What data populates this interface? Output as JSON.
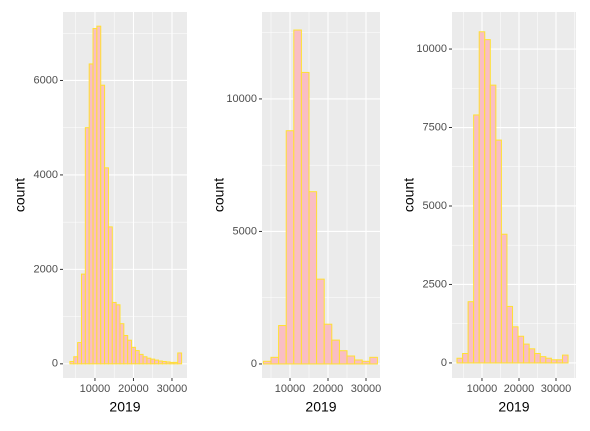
{
  "chart_data": [
    {
      "type": "histogram",
      "xlabel": "2019",
      "ylabel": "count",
      "color": "#f9bec4",
      "edgecolor": "#ffe033",
      "grid": true,
      "bins": [
        3500,
        4500,
        5500,
        6500,
        7500,
        8500,
        9500,
        10500,
        11500,
        12500,
        13500,
        14500,
        15500,
        16500,
        17500,
        18500,
        19500,
        20500,
        21500,
        22500,
        23500,
        24500,
        25500,
        26500,
        27500,
        28500,
        29500,
        30500,
        31500,
        32500
      ],
      "values": [
        50,
        150,
        450,
        1900,
        5000,
        6350,
        7100,
        7150,
        5900,
        4150,
        2900,
        1300,
        1250,
        850,
        600,
        500,
        350,
        280,
        200,
        150,
        120,
        100,
        80,
        60,
        50,
        40,
        30,
        30,
        230
      ],
      "xlim": [
        1700,
        33900
      ],
      "ylim": [
        -300,
        7450
      ],
      "xticks": [
        10000,
        20000,
        30000
      ],
      "yticks": [
        0,
        2000,
        4000,
        6000
      ]
    },
    {
      "type": "histogram",
      "xlabel": "2019",
      "ylabel": "count",
      "color": "#f9bec4",
      "edgecolor": "#ffe033",
      "grid": true,
      "bins": [
        3000,
        5000,
        7000,
        9000,
        11000,
        13000,
        15000,
        17000,
        19000,
        21000,
        23000,
        25000,
        27000,
        29000,
        31000,
        33000
      ],
      "values": [
        100,
        250,
        1450,
        8800,
        12600,
        11000,
        6500,
        3200,
        1500,
        900,
        500,
        300,
        150,
        100,
        250
      ],
      "xlim": [
        2630,
        33680
      ],
      "ylim": [
        -530,
        13280
      ],
      "xticks": [
        10000,
        20000,
        30000
      ],
      "yticks": [
        0,
        5000,
        10000
      ]
    },
    {
      "type": "histogram",
      "xlabel": "2019",
      "ylabel": "count",
      "color": "#f9bec4",
      "edgecolor": "#ffe033",
      "grid": true,
      "bins": [
        3250,
        4750,
        6250,
        7750,
        9250,
        10750,
        12250,
        13750,
        15250,
        16750,
        18250,
        19750,
        21250,
        22750,
        24250,
        25750,
        27250,
        28750,
        30250,
        31750,
        33250
      ],
      "values": [
        150,
        300,
        1950,
        7900,
        10550,
        10300,
        8850,
        7100,
        4100,
        1800,
        1150,
        850,
        600,
        450,
        300,
        200,
        150,
        100,
        100,
        250
      ],
      "xlim": [
        1900,
        35400
      ],
      "ylim": [
        -480,
        11180
      ],
      "xticks": [
        10000,
        20000,
        30000
      ],
      "yticks": [
        0,
        2500,
        5000,
        7500,
        10000
      ]
    }
  ]
}
